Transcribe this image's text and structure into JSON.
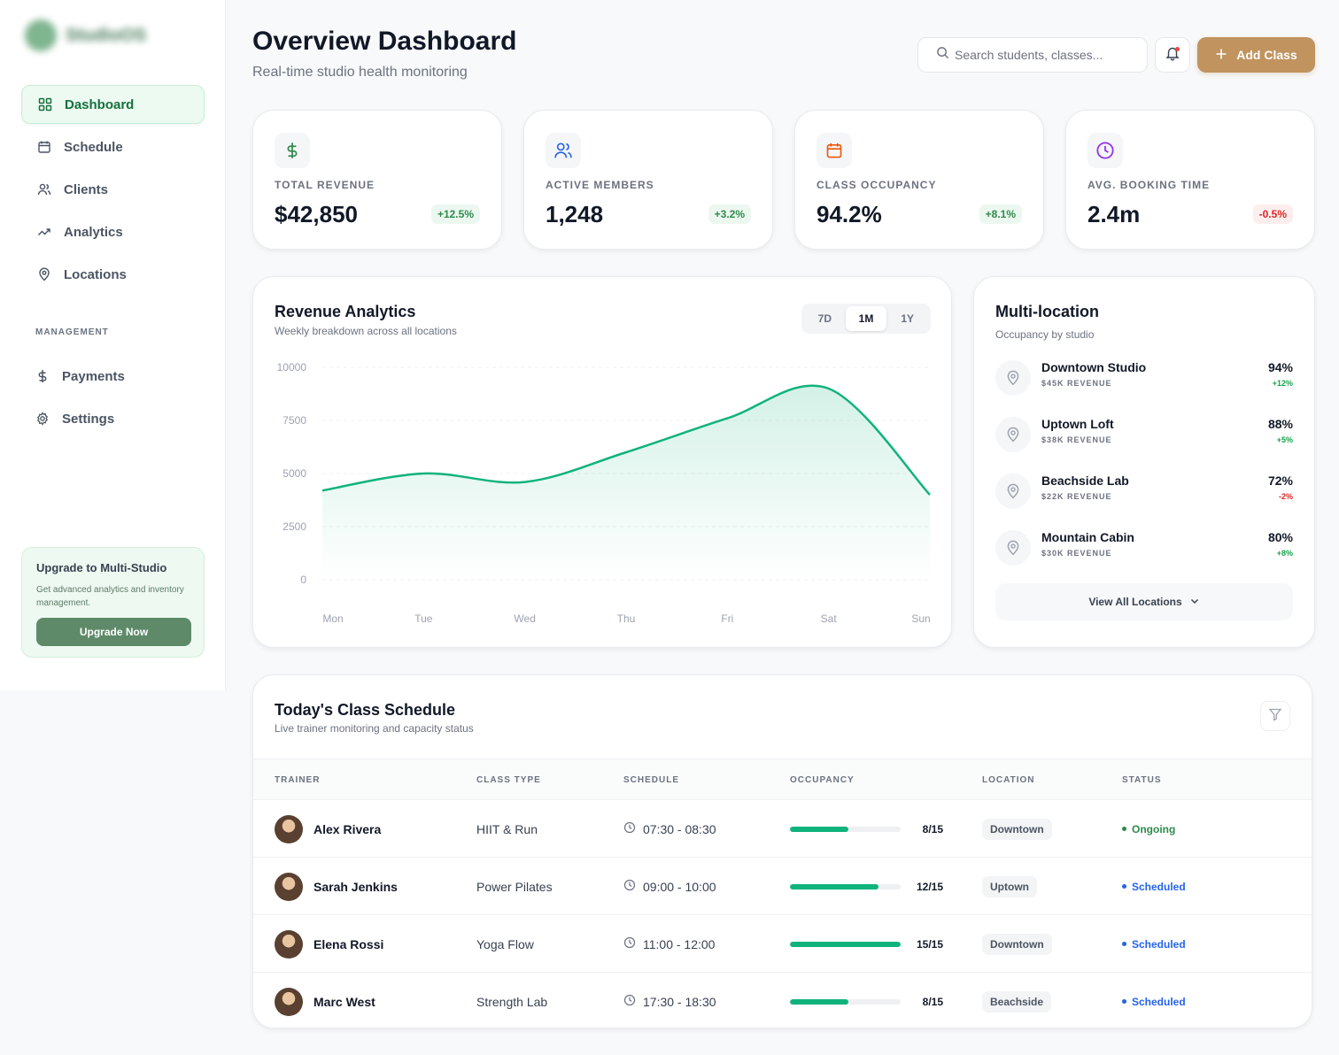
{
  "brand": {
    "name": "StudioOS"
  },
  "sidebar": {
    "items": [
      {
        "label": "Dashboard",
        "icon": "grid-icon"
      },
      {
        "label": "Schedule",
        "icon": "calendar-icon"
      },
      {
        "label": "Clients",
        "icon": "users-icon"
      },
      {
        "label": "Analytics",
        "icon": "trend-icon"
      },
      {
        "label": "Locations",
        "icon": "pin-icon"
      }
    ],
    "section_label": "MANAGEMENT",
    "management": [
      {
        "label": "Payments",
        "icon": "dollar-icon"
      },
      {
        "label": "Settings",
        "icon": "gear-icon"
      }
    ],
    "upgrade": {
      "title": "Upgrade to Multi-Studio",
      "text": "Get advanced analytics and inventory management.",
      "button": "Upgrade Now"
    }
  },
  "header": {
    "title": "Overview Dashboard",
    "subtitle": "Real-time studio health monitoring",
    "search_placeholder": "Search students, classes...",
    "add_label": "Add Class"
  },
  "stats": [
    {
      "label": "TOTAL REVENUE",
      "value": "$42,850",
      "delta": "+12.5%",
      "trend": "up",
      "icon": "dollar-icon",
      "color": "#2f8a4d"
    },
    {
      "label": "ACTIVE MEMBERS",
      "value": "1,248",
      "delta": "+3.2%",
      "trend": "up",
      "icon": "users-icon",
      "color": "#2563eb"
    },
    {
      "label": "CLASS OCCUPANCY",
      "value": "94.2%",
      "delta": "+8.1%",
      "trend": "up",
      "icon": "calendar-icon",
      "color": "#ea580c"
    },
    {
      "label": "AVG. BOOKING TIME",
      "value": "2.4m",
      "delta": "-0.5%",
      "trend": "down",
      "icon": "clock-icon",
      "color": "#9333ea"
    }
  ],
  "revenue": {
    "title": "Revenue Analytics",
    "subtitle": "Weekly breakdown across all locations",
    "ranges": [
      "7D",
      "1M",
      "1Y"
    ],
    "selected_range": "1M"
  },
  "chart_data": {
    "type": "area",
    "categories": [
      "Mon",
      "Tue",
      "Wed",
      "Thu",
      "Fri",
      "Sat",
      "Sun"
    ],
    "values": [
      4200,
      5000,
      4600,
      6000,
      7600,
      9000,
      4000
    ],
    "y_ticks": [
      10000,
      7500,
      5000,
      2500,
      0
    ],
    "ylim": [
      0,
      10000
    ],
    "color": "#10b37b",
    "grid": true
  },
  "multi": {
    "title": "Multi-location",
    "subtitle": "Occupancy by studio",
    "locations": [
      {
        "name": "Downtown Studio",
        "revenue": "$45K REVENUE",
        "pct": "94%",
        "change": "+12%",
        "trend": "up"
      },
      {
        "name": "Uptown Loft",
        "revenue": "$38K REVENUE",
        "pct": "88%",
        "change": "+5%",
        "trend": "up"
      },
      {
        "name": "Beachside Lab",
        "revenue": "$22K REVENUE",
        "pct": "72%",
        "change": "-2%",
        "trend": "down"
      },
      {
        "name": "Mountain Cabin",
        "revenue": "$30K REVENUE",
        "pct": "80%",
        "change": "+8%",
        "trend": "up"
      }
    ],
    "view_all": "View All Locations"
  },
  "schedule": {
    "title": "Today's Class Schedule",
    "subtitle": "Live trainer monitoring and capacity status",
    "columns": [
      "TRAINER",
      "CLASS TYPE",
      "SCHEDULE",
      "OCCUPANCY",
      "LOCATION",
      "STATUS"
    ],
    "rows": [
      {
        "trainer": "Alex Rivera",
        "class": "HIIT & Run",
        "time": "07:30 - 08:30",
        "occ": "8/15",
        "fill": 0.53,
        "location": "Downtown",
        "status": "Ongoing",
        "state": "ongoing"
      },
      {
        "trainer": "Sarah Jenkins",
        "class": "Power Pilates",
        "time": "09:00 - 10:00",
        "occ": "12/15",
        "fill": 0.8,
        "location": "Uptown",
        "status": "Scheduled",
        "state": "scheduled"
      },
      {
        "trainer": "Elena Rossi",
        "class": "Yoga Flow",
        "time": "11:00 - 12:00",
        "occ": "15/15",
        "fill": 1.0,
        "location": "Downtown",
        "status": "Scheduled",
        "state": "scheduled"
      },
      {
        "trainer": "Marc West",
        "class": "Strength Lab",
        "time": "17:30 - 18:30",
        "occ": "8/15",
        "fill": 0.53,
        "location": "Beachside",
        "status": "Scheduled",
        "state": "scheduled"
      }
    ]
  }
}
